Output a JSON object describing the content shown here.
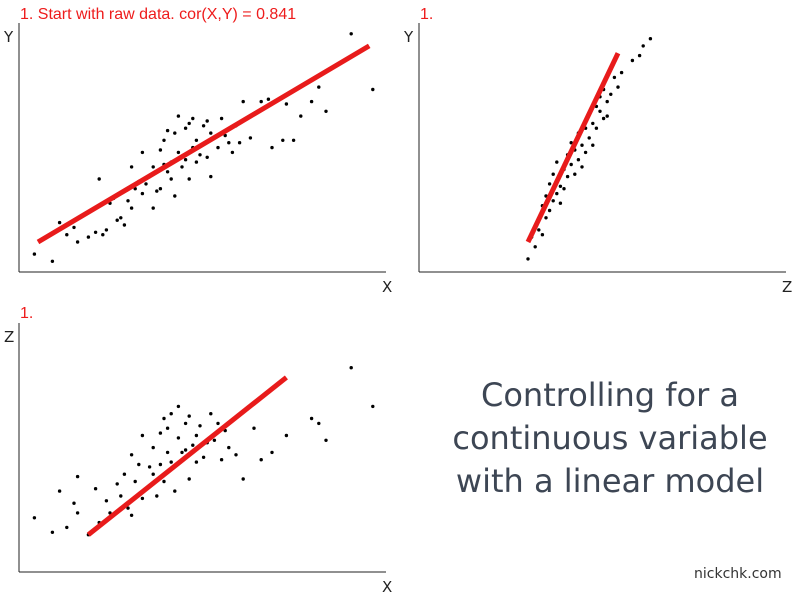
{
  "chart_data": [
    {
      "type": "scatter",
      "title": "1. Start with raw data. cor(X,Y) = 0.841",
      "xlabel": "X",
      "ylabel": "Y",
      "xlim": [
        0,
        10
      ],
      "ylim": [
        0,
        10
      ],
      "color": "#000000",
      "fit_color": "#e81b1b",
      "fit": {
        "x": [
          0.5,
          9.7
        ],
        "y": [
          1.2,
          9.3
        ]
      },
      "points": [
        [
          0.4,
          0.7
        ],
        [
          0.9,
          0.4
        ],
        [
          1.1,
          2.0
        ],
        [
          1.3,
          1.5
        ],
        [
          1.5,
          1.8
        ],
        [
          1.6,
          1.2
        ],
        [
          1.9,
          1.4
        ],
        [
          2.1,
          1.6
        ],
        [
          2.4,
          1.7
        ],
        [
          2.2,
          3.8
        ],
        [
          2.3,
          1.5
        ],
        [
          2.5,
          2.8
        ],
        [
          2.6,
          3.0
        ],
        [
          2.7,
          2.1
        ],
        [
          2.8,
          2.2
        ],
        [
          2.9,
          1.9
        ],
        [
          3.0,
          2.9
        ],
        [
          3.1,
          2.6
        ],
        [
          3.1,
          4.3
        ],
        [
          3.2,
          3.4
        ],
        [
          3.3,
          3.7
        ],
        [
          3.4,
          3.2
        ],
        [
          3.4,
          4.9
        ],
        [
          3.5,
          3.6
        ],
        [
          3.6,
          3.9
        ],
        [
          3.7,
          2.6
        ],
        [
          3.7,
          4.3
        ],
        [
          3.8,
          3.3
        ],
        [
          3.9,
          3.4
        ],
        [
          3.9,
          5.0
        ],
        [
          4.0,
          4.4
        ],
        [
          4.0,
          5.4
        ],
        [
          4.1,
          4.1
        ],
        [
          4.1,
          5.8
        ],
        [
          4.2,
          3.8
        ],
        [
          4.2,
          4.5
        ],
        [
          4.3,
          3.1
        ],
        [
          4.3,
          5.7
        ],
        [
          4.4,
          4.9
        ],
        [
          4.4,
          6.4
        ],
        [
          4.5,
          4.3
        ],
        [
          4.6,
          5.9
        ],
        [
          4.6,
          4.6
        ],
        [
          4.7,
          3.8
        ],
        [
          4.7,
          6.1
        ],
        [
          4.8,
          5.1
        ],
        [
          4.8,
          6.3
        ],
        [
          4.9,
          4.5
        ],
        [
          4.9,
          5.4
        ],
        [
          5.0,
          4.8
        ],
        [
          5.1,
          6.0
        ],
        [
          5.2,
          4.7
        ],
        [
          5.2,
          6.2
        ],
        [
          5.3,
          5.7
        ],
        [
          5.3,
          3.9
        ],
        [
          5.4,
          5.5
        ],
        [
          5.5,
          5.1
        ],
        [
          5.6,
          6.3
        ],
        [
          5.7,
          5.6
        ],
        [
          5.8,
          5.3
        ],
        [
          5.9,
          4.9
        ],
        [
          6.0,
          6.0
        ],
        [
          6.1,
          5.3
        ],
        [
          6.2,
          7.0
        ],
        [
          6.4,
          5.5
        ],
        [
          6.5,
          6.5
        ],
        [
          6.7,
          7.0
        ],
        [
          6.9,
          7.1
        ],
        [
          7.0,
          5.1
        ],
        [
          7.3,
          5.4
        ],
        [
          7.4,
          6.9
        ],
        [
          7.6,
          5.4
        ],
        [
          7.8,
          6.4
        ],
        [
          8.1,
          7.0
        ],
        [
          8.3,
          7.6
        ],
        [
          8.5,
          6.6
        ],
        [
          9.2,
          9.8
        ],
        [
          9.8,
          7.5
        ]
      ]
    },
    {
      "type": "scatter",
      "title": "1.",
      "xlabel": "Z",
      "ylabel": "Y",
      "xlim": [
        0,
        10
      ],
      "ylim": [
        0,
        10
      ],
      "color": "#000000",
      "fit_color": "#e81b1b",
      "fit": {
        "x": [
          3.0,
          5.5
        ],
        "y": [
          1.2,
          9.0
        ]
      },
      "points": [
        [
          3.0,
          0.5
        ],
        [
          3.1,
          1.4
        ],
        [
          3.2,
          1.0
        ],
        [
          3.3,
          2.1
        ],
        [
          3.3,
          1.7
        ],
        [
          3.4,
          2.7
        ],
        [
          3.4,
          1.5
        ],
        [
          3.5,
          3.1
        ],
        [
          3.5,
          2.2
        ],
        [
          3.6,
          3.6
        ],
        [
          3.6,
          2.5
        ],
        [
          3.7,
          2.9
        ],
        [
          3.7,
          4.0
        ],
        [
          3.8,
          3.2
        ],
        [
          3.8,
          4.5
        ],
        [
          3.9,
          3.5
        ],
        [
          3.9,
          2.8
        ],
        [
          4.0,
          4.2
        ],
        [
          4.0,
          3.4
        ],
        [
          4.1,
          4.8
        ],
        [
          4.1,
          3.9
        ],
        [
          4.2,
          4.4
        ],
        [
          4.2,
          5.3
        ],
        [
          4.3,
          4.0
        ],
        [
          4.3,
          5.0
        ],
        [
          4.4,
          4.6
        ],
        [
          4.4,
          5.7
        ],
        [
          4.5,
          5.2
        ],
        [
          4.5,
          4.3
        ],
        [
          4.6,
          5.9
        ],
        [
          4.6,
          4.9
        ],
        [
          4.7,
          5.5
        ],
        [
          4.7,
          6.5
        ],
        [
          4.8,
          6.1
        ],
        [
          4.8,
          5.2
        ],
        [
          4.9,
          6.8
        ],
        [
          4.9,
          5.9
        ],
        [
          5.0,
          6.6
        ],
        [
          5.0,
          7.2
        ],
        [
          5.1,
          6.3
        ],
        [
          5.1,
          7.5
        ],
        [
          5.2,
          7.0
        ],
        [
          5.2,
          6.4
        ],
        [
          5.3,
          7.3
        ],
        [
          5.4,
          8.0
        ],
        [
          5.5,
          7.6
        ],
        [
          5.6,
          8.2
        ],
        [
          5.9,
          8.7
        ],
        [
          6.1,
          8.9
        ],
        [
          6.2,
          9.3
        ],
        [
          6.4,
          9.6
        ]
      ]
    },
    {
      "type": "scatter",
      "title": "1.",
      "xlabel": "X",
      "ylabel": "Z",
      "xlim": [
        0,
        10
      ],
      "ylim": [
        0,
        10
      ],
      "color": "#000000",
      "fit_color": "#e81b1b",
      "fit": {
        "x": [
          1.9,
          7.4
        ],
        "y": [
          1.5,
          8.0
        ]
      },
      "points": [
        [
          0.4,
          2.2
        ],
        [
          0.9,
          1.6
        ],
        [
          1.1,
          3.3
        ],
        [
          1.3,
          1.8
        ],
        [
          1.5,
          2.8
        ],
        [
          1.6,
          2.4
        ],
        [
          1.6,
          3.9
        ],
        [
          1.9,
          1.5
        ],
        [
          2.1,
          3.4
        ],
        [
          2.2,
          2.0
        ],
        [
          2.4,
          2.9
        ],
        [
          2.5,
          2.4
        ],
        [
          2.7,
          3.6
        ],
        [
          2.8,
          3.1
        ],
        [
          2.9,
          4.0
        ],
        [
          3.0,
          2.6
        ],
        [
          3.1,
          2.3
        ],
        [
          3.1,
          4.8
        ],
        [
          3.2,
          3.7
        ],
        [
          3.3,
          4.4
        ],
        [
          3.4,
          3.0
        ],
        [
          3.4,
          5.6
        ],
        [
          3.5,
          3.4
        ],
        [
          3.6,
          4.3
        ],
        [
          3.7,
          5.1
        ],
        [
          3.7,
          4.0
        ],
        [
          3.8,
          3.1
        ],
        [
          3.9,
          5.7
        ],
        [
          3.9,
          4.4
        ],
        [
          4.0,
          6.3
        ],
        [
          4.0,
          3.7
        ],
        [
          4.1,
          4.9
        ],
        [
          4.1,
          5.9
        ],
        [
          4.2,
          4.5
        ],
        [
          4.2,
          6.5
        ],
        [
          4.3,
          3.3
        ],
        [
          4.4,
          5.5
        ],
        [
          4.4,
          6.8
        ],
        [
          4.5,
          4.9
        ],
        [
          4.6,
          6.1
        ],
        [
          4.6,
          5.0
        ],
        [
          4.7,
          6.4
        ],
        [
          4.7,
          3.8
        ],
        [
          4.8,
          5.2
        ],
        [
          4.9,
          5.6
        ],
        [
          4.9,
          4.5
        ],
        [
          5.0,
          6.0
        ],
        [
          5.1,
          4.7
        ],
        [
          5.2,
          5.3
        ],
        [
          5.3,
          6.5
        ],
        [
          5.4,
          5.4
        ],
        [
          5.5,
          6.1
        ],
        [
          5.6,
          4.6
        ],
        [
          5.7,
          5.8
        ],
        [
          5.8,
          5.1
        ],
        [
          6.0,
          4.8
        ],
        [
          6.2,
          3.8
        ],
        [
          6.5,
          5.9
        ],
        [
          6.7,
          4.6
        ],
        [
          7.0,
          4.9
        ],
        [
          7.4,
          5.6
        ],
        [
          8.1,
          6.3
        ],
        [
          8.3,
          6.1
        ],
        [
          8.5,
          5.4
        ],
        [
          9.2,
          8.4
        ],
        [
          9.8,
          6.8
        ]
      ]
    }
  ],
  "caption": [
    "Controlling for a",
    "continuous variable",
    "with a linear model"
  ],
  "credit": "nickchk.com"
}
